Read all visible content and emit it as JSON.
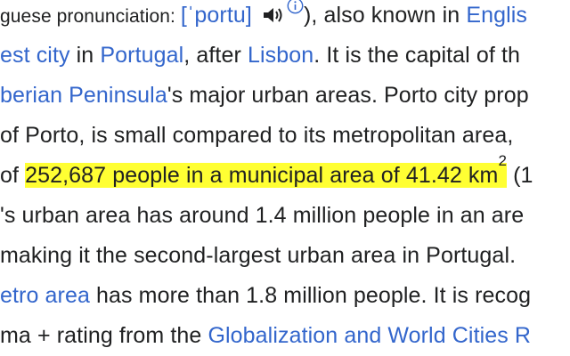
{
  "article": {
    "line1": {
      "prefix": "guese pronunciation: ",
      "ipa": "[ˈportu]",
      "icons": [
        "speaker-icon",
        "info-icon"
      ],
      "mid": "), also known in ",
      "link": "Englis"
    },
    "line2": {
      "link1": "est city",
      "t1": " in ",
      "link2": "Portugal",
      "t2": ", after ",
      "link3": "Lisbon",
      "t3": ". It is the capital of th"
    },
    "line3": {
      "link1": "berian Peninsula",
      "t1": "'s major urban areas. Porto city prop"
    },
    "line4": {
      "text": " of Porto, is small compared to its metropolitan area,"
    },
    "line5": {
      "prefix": "of ",
      "highlight": "252,687 people in a municipal area of 41.42 km",
      "sup": "2",
      "suffix": " (1"
    },
    "line6": {
      "text": "'s urban area has around 1.4 million people in an are"
    },
    "line7": {
      "text": " making it the second-largest urban area in Portugal."
    },
    "line8": {
      "link1": "etro area",
      "t1": " has more than 1.8 million people. It is recog"
    },
    "line9": {
      "t1": "ma + rating from the ",
      "link1": "Globalization and World Cities R"
    }
  }
}
